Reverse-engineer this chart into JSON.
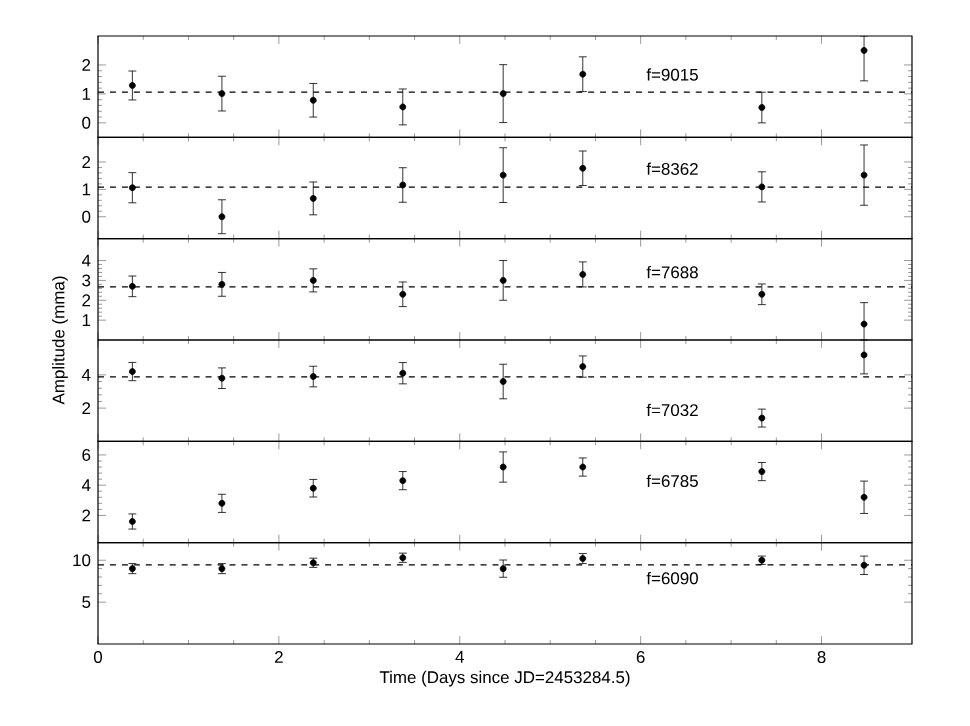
{
  "chart_data": [
    {
      "type": "scatter",
      "xlim": [
        0,
        9
      ],
      "xticks": [
        0,
        2,
        4,
        6,
        8
      ],
      "ylim": [
        -0.5,
        3
      ],
      "yticks": [
        0,
        1,
        2
      ],
      "tick_labels": "y",
      "marker": "circle",
      "annotations": [
        "f=9015"
      ],
      "x": [
        0.38,
        1.37,
        2.38,
        3.37,
        4.48,
        5.36,
        7.34,
        8.47
      ],
      "series": [
        {
          "color": "#000000",
          "values": [
            1.29,
            1.01,
            0.78,
            0.55,
            1.01,
            1.68,
            0.53,
            2.5
          ],
          "errors": [
            0.5,
            0.6,
            0.58,
            0.62,
            1.0,
            0.6,
            0.53,
            [
              1.45,
              3.0
            ]
          ]
        }
      ],
      "ref_lines": [
        {
          "axis": "y",
          "value": 1.06,
          "color": "#000000",
          "line_style": "dashed"
        }
      ]
    },
    {
      "type": "scatter",
      "xlim": [
        0,
        9
      ],
      "xticks": [
        0,
        2,
        4,
        6,
        8
      ],
      "ylim": [
        -0.8,
        2.9
      ],
      "yticks": [
        0,
        1,
        2
      ],
      "tick_labels": "y",
      "marker": "circle",
      "annotations": [
        "f=8362"
      ],
      "x": [
        0.38,
        1.37,
        2.38,
        3.37,
        4.48,
        5.36,
        7.34,
        8.47
      ],
      "series": [
        {
          "color": "#000000",
          "values": [
            1.06,
            0.0,
            0.67,
            1.16,
            1.52,
            1.77,
            1.09,
            1.52
          ],
          "errors": [
            0.55,
            0.62,
            0.6,
            0.63,
            1.0,
            0.63,
            0.55,
            1.1
          ]
        }
      ],
      "ref_lines": [
        {
          "axis": "y",
          "value": 1.08,
          "color": "#000000",
          "line_style": "dashed"
        }
      ]
    },
    {
      "type": "scatter",
      "xlim": [
        0,
        9
      ],
      "xticks": [
        0,
        2,
        4,
        6,
        8
      ],
      "ylim": [
        0,
        5.1
      ],
      "yticks": [
        1,
        2,
        3,
        4
      ],
      "tick_labels": "y",
      "marker": "circle",
      "annotations": [
        "f=7688"
      ],
      "x": [
        0.38,
        1.37,
        2.38,
        3.37,
        4.48,
        5.36,
        7.34,
        8.47
      ],
      "series": [
        {
          "color": "#000000",
          "values": [
            2.7,
            2.8,
            3.0,
            2.3,
            3.0,
            3.3,
            2.3,
            0.8
          ],
          "errors": [
            0.52,
            0.6,
            0.58,
            0.62,
            1.0,
            0.63,
            0.52,
            [
              0.0,
              1.88
            ]
          ]
        }
      ],
      "ref_lines": [
        {
          "axis": "y",
          "value": 2.67,
          "color": "#000000",
          "line_style": "dashed"
        }
      ]
    },
    {
      "type": "scatter",
      "xlim": [
        0,
        9
      ],
      "xticks": [
        0,
        2,
        4,
        6,
        8
      ],
      "ylim": [
        0,
        6.1
      ],
      "yticks": [
        2,
        4
      ],
      "tick_labels": "y",
      "marker": "circle",
      "ylabel": "Amplitude (mma)",
      "annotations": [
        "f=7032"
      ],
      "x": [
        0.38,
        1.37,
        2.38,
        3.37,
        4.48,
        5.36,
        7.34,
        8.47
      ],
      "series": [
        {
          "color": "#000000",
          "values": [
            4.2,
            3.8,
            3.9,
            4.1,
            3.6,
            4.5,
            1.4,
            5.2
          ],
          "errors": [
            0.55,
            0.62,
            0.62,
            0.64,
            1.04,
            0.64,
            0.54,
            [
              4.06,
              6.1
            ]
          ]
        }
      ],
      "ref_lines": [
        {
          "axis": "y",
          "value": 3.88,
          "color": "#000000",
          "line_style": "dashed"
        }
      ]
    },
    {
      "type": "scatter",
      "xlim": [
        0,
        9
      ],
      "xticks": [
        0,
        2,
        4,
        6,
        8
      ],
      "ylim": [
        0.2,
        6.9
      ],
      "yticks": [
        2,
        4,
        6
      ],
      "tick_labels": "y",
      "marker": "circle",
      "annotations": [
        "f=6785"
      ],
      "x": [
        0.38,
        1.37,
        2.38,
        3.37,
        4.48,
        5.36,
        7.34,
        8.47
      ],
      "series": [
        {
          "color": "#000000",
          "values": [
            1.6,
            2.8,
            3.8,
            4.3,
            5.2,
            5.2,
            4.9,
            3.2
          ],
          "errors": [
            0.5,
            0.6,
            0.58,
            0.6,
            1.0,
            0.6,
            0.6,
            1.07
          ]
        }
      ]
    },
    {
      "type": "scatter",
      "xlim": [
        0,
        9
      ],
      "xticks": [
        0,
        2,
        4,
        6,
        8
      ],
      "ylim": [
        0,
        12.1
      ],
      "yticks": [
        5,
        10
      ],
      "marker": "circle",
      "xlabel": "Time (Days since JD=2453284.5)",
      "annotations": [
        "f=6090"
      ],
      "x": [
        0.38,
        1.37,
        2.38,
        3.37,
        4.48,
        5.36,
        7.34,
        8.47
      ],
      "series": [
        {
          "color": "#000000",
          "values": [
            9.0,
            9.0,
            9.7,
            10.3,
            9.0,
            10.2,
            10.0,
            9.4
          ],
          "errors": [
            0.6,
            0.6,
            0.55,
            0.55,
            1.03,
            0.6,
            0.5,
            1.1
          ]
        }
      ],
      "ref_lines": [
        {
          "axis": "y",
          "value": 9.44,
          "color": "#000000",
          "line_style": "dashed"
        }
      ]
    }
  ]
}
